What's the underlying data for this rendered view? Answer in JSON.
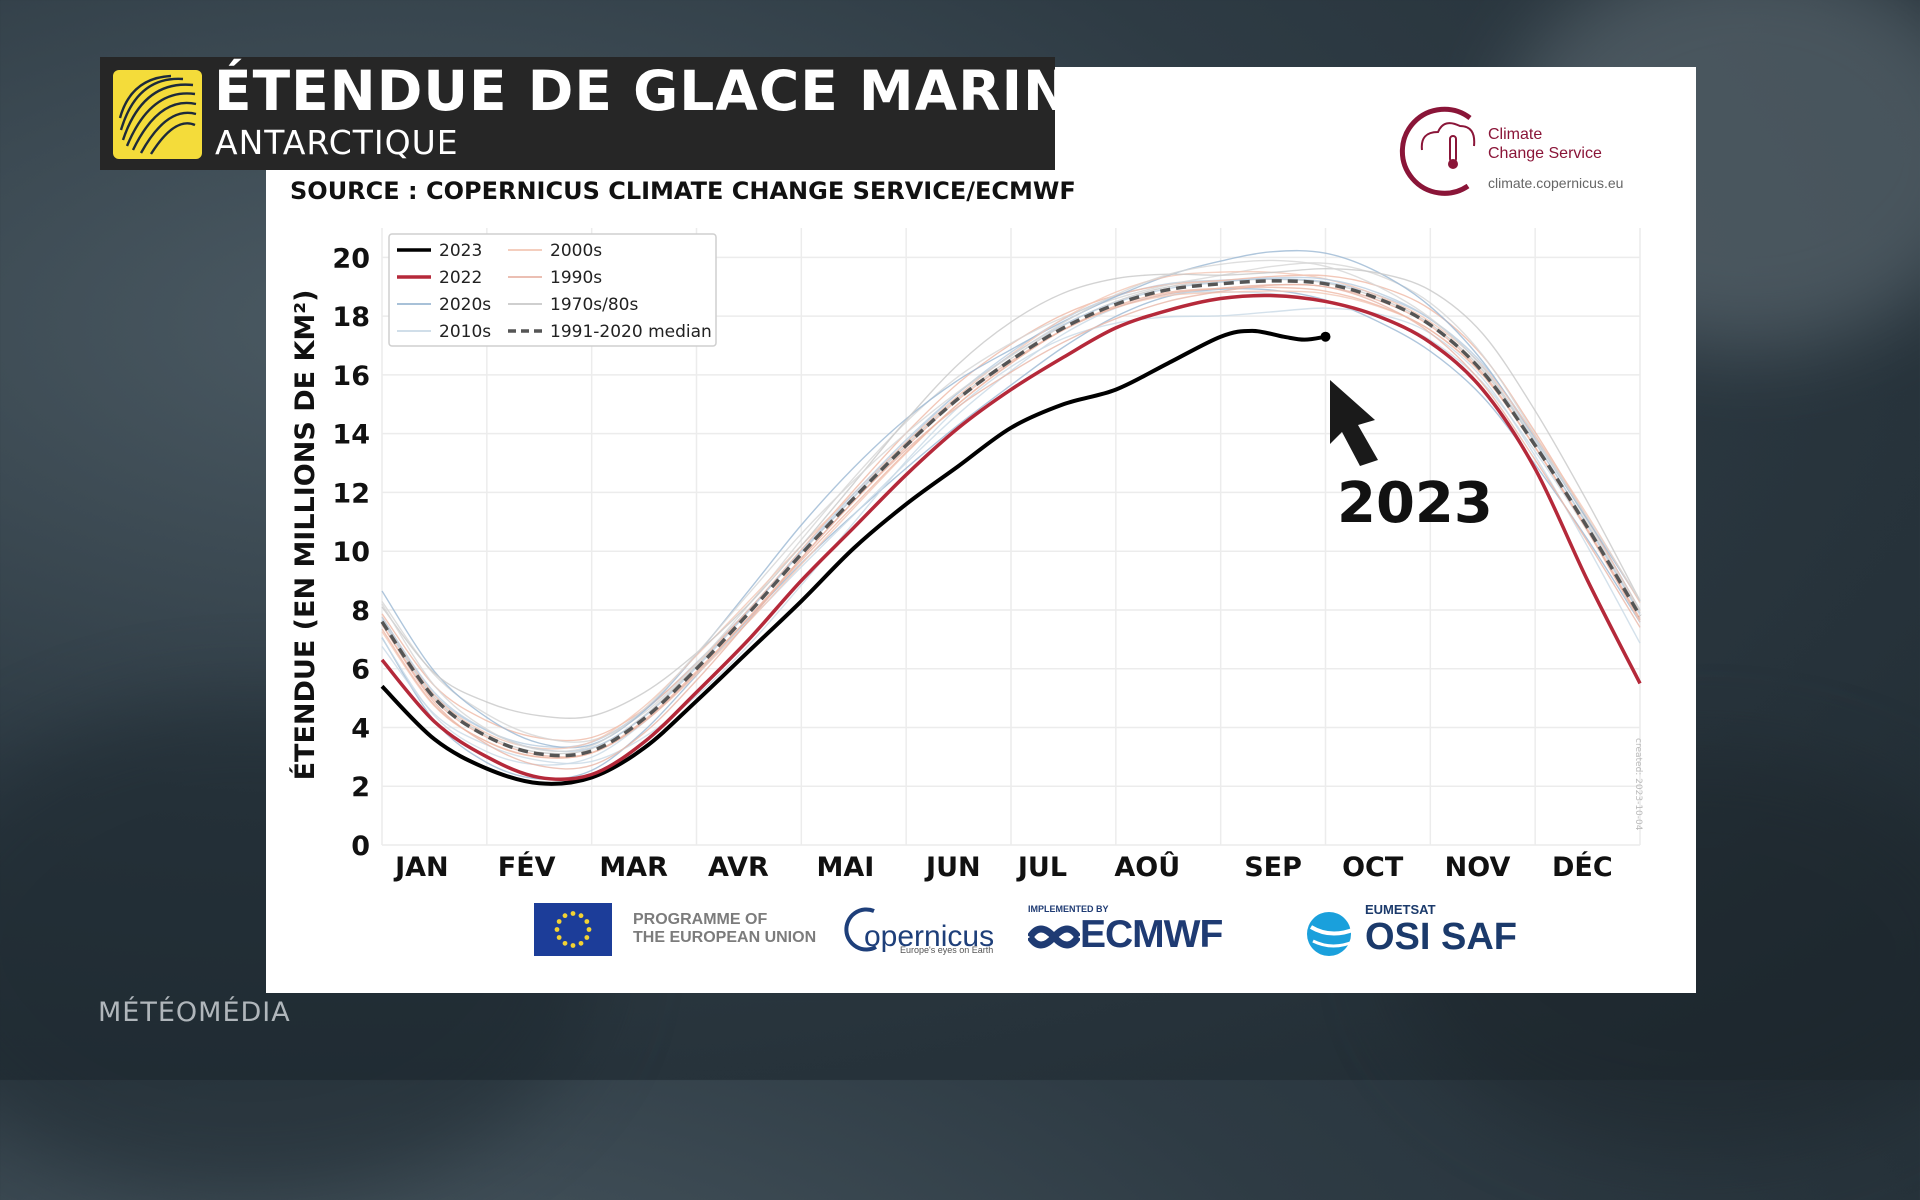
{
  "banner": {
    "title": "ÉTENDUE DE GLACE MARINE",
    "subtitle": "ANTARCTIQUE",
    "logo_icon": "meteomedia-swirl-icon"
  },
  "source": "SOURCE : COPERNICUS CLIMATE CHANGE SERVICE/ECMWF",
  "c3s": {
    "name_line1": "Climate",
    "name_line2": "Change Service",
    "url": "climate.copernicus.eu",
    "color": "#8a1538"
  },
  "watermark": "MÉTÉOMÉDIA",
  "created": "created: 2023-10-04",
  "footer": {
    "eu_line1": "PROGRAMME OF",
    "eu_line2": "THE EUROPEAN UNION",
    "copernicus": "opernicus",
    "copernicus_sub": "Europe's eyes on Earth",
    "ecmwf_top": "IMPLEMENTED BY",
    "ecmwf": "ECMWF",
    "osi_top": "EUMETSAT",
    "osi": "OSI SAF"
  },
  "annotation": {
    "label": "2023",
    "icon": "arrow-up-left-icon"
  },
  "chart_data": {
    "type": "line",
    "title": "",
    "xlabel": "",
    "ylabel": "ÉTENDUE (EN MILLIONS DE KM²)",
    "ylim": [
      0,
      21
    ],
    "yticks": [
      0,
      2,
      4,
      6,
      8,
      10,
      12,
      14,
      16,
      18,
      20
    ],
    "xlim": [
      0,
      12
    ],
    "months": [
      "JAN",
      "FÉV",
      "MAR",
      "AVR",
      "MAI",
      "JUN",
      "JUL",
      "AOÛ",
      "SEP",
      "OCT",
      "NOV",
      "DÉC"
    ],
    "month_positions": [
      0.38,
      1.38,
      2.4,
      3.4,
      4.42,
      5.45,
      6.3,
      7.3,
      8.5,
      9.45,
      10.45,
      11.45
    ],
    "grid": true,
    "legend_position": "top-left",
    "legend": [
      {
        "label": "2023",
        "color": "#000000",
        "style": "solid-thick"
      },
      {
        "label": "2022",
        "color": "#b5293a",
        "style": "solid-thick"
      },
      {
        "label": "2020s",
        "color": "#9bb8d3",
        "style": "solid"
      },
      {
        "label": "2010s",
        "color": "#c9d9e6",
        "style": "solid"
      },
      {
        "label": "2000s",
        "color": "#f2c7b5",
        "style": "solid"
      },
      {
        "label": "1990s",
        "color": "#e8b6a8",
        "style": "solid"
      },
      {
        "label": "1970s/80s",
        "color": "#c8c8c8",
        "style": "solid"
      },
      {
        "label": "1991-2020 median",
        "color": "#555555",
        "style": "dashed"
      }
    ],
    "series": [
      {
        "name": "2023",
        "color": "#000000",
        "x": [
          0,
          0.5,
          1,
          1.5,
          2,
          2.5,
          3,
          3.5,
          4,
          4.5,
          5,
          5.5,
          6,
          6.5,
          7,
          7.5,
          8,
          8.3,
          8.6,
          8.8,
          9.0
        ],
        "y": [
          5.4,
          3.6,
          2.6,
          2.1,
          2.3,
          3.3,
          4.9,
          6.6,
          8.3,
          10.1,
          11.6,
          12.9,
          14.2,
          15.0,
          15.5,
          16.4,
          17.3,
          17.5,
          17.3,
          17.2,
          17.3
        ]
      },
      {
        "name": "2022",
        "color": "#b5293a",
        "x": [
          0,
          0.5,
          1,
          1.5,
          2,
          2.5,
          3,
          3.5,
          4,
          4.5,
          5,
          5.5,
          6,
          6.5,
          7,
          7.5,
          8,
          8.5,
          9,
          9.5,
          10,
          10.5,
          11,
          11.5,
          12
        ],
        "y": [
          6.3,
          4.2,
          3.0,
          2.3,
          2.4,
          3.5,
          5.2,
          7.0,
          9.0,
          10.8,
          12.6,
          14.2,
          15.5,
          16.6,
          17.6,
          18.2,
          18.6,
          18.7,
          18.5,
          18.0,
          17.1,
          15.5,
          12.8,
          9.0,
          5.5
        ]
      },
      {
        "name": "1991-2020 median",
        "color": "#555555",
        "x": [
          0,
          0.5,
          1,
          1.5,
          2,
          2.5,
          3,
          3.5,
          4,
          4.5,
          5,
          5.5,
          6,
          6.5,
          7,
          7.5,
          8,
          8.5,
          9,
          9.5,
          10,
          10.5,
          11,
          11.5,
          12
        ],
        "y": [
          7.6,
          5.0,
          3.7,
          3.1,
          3.2,
          4.3,
          6.0,
          7.9,
          9.9,
          11.8,
          13.6,
          15.2,
          16.5,
          17.6,
          18.4,
          18.9,
          19.1,
          19.2,
          19.1,
          18.6,
          17.7,
          16.1,
          13.6,
          10.8,
          7.8
        ]
      }
    ]
  }
}
